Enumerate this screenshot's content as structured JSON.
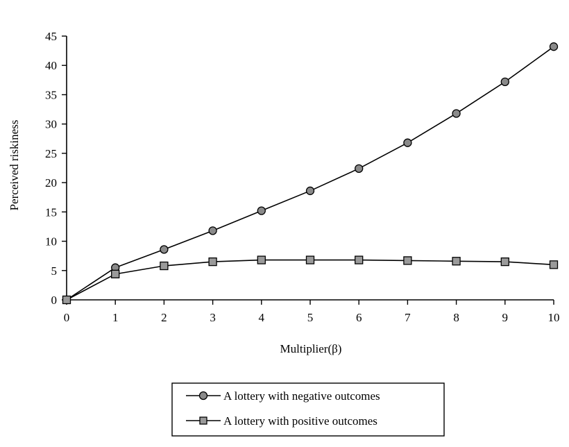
{
  "chart_data": {
    "type": "line",
    "x": [
      0,
      1,
      2,
      3,
      4,
      5,
      6,
      7,
      8,
      9,
      10
    ],
    "x_ticks": [
      "0",
      "1",
      "2",
      "3",
      "4",
      "5",
      "6",
      "7",
      "8",
      "9",
      "10"
    ],
    "y_ticks": [
      "0",
      "5",
      "10",
      "15",
      "20",
      "25",
      "30",
      "35",
      "40",
      "45"
    ],
    "series": [
      {
        "name": "A lottery with negative outcomes",
        "marker": "circle",
        "values": [
          0,
          5.5,
          8.6,
          11.8,
          15.2,
          18.6,
          22.4,
          26.8,
          31.8,
          37.2,
          43.2
        ]
      },
      {
        "name": "A lottery with positive outcomes",
        "marker": "square",
        "values": [
          0,
          4.4,
          5.8,
          6.5,
          6.8,
          6.8,
          6.8,
          6.7,
          6.6,
          6.5,
          6.0
        ]
      }
    ],
    "xlabel": "Multiplier(β)",
    "ylabel": "Perceived riskiness",
    "xlim": [
      0,
      10
    ],
    "ylim": [
      0,
      45
    ],
    "grid": false,
    "legend_position": "bottom-center"
  }
}
